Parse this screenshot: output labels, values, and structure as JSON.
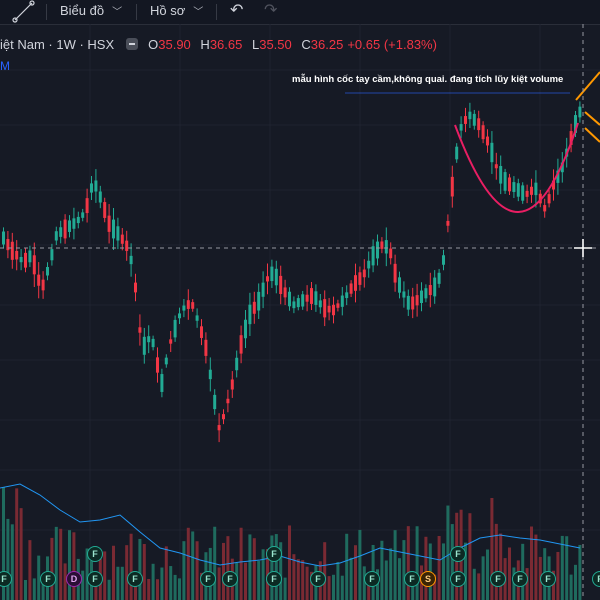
{
  "toolbar": {
    "chart_label": "Biểu đồ",
    "profile_label": "Hồ sơ"
  },
  "legend": {
    "symbol": "iệt Nam · 1W · HSX",
    "open_label": "O",
    "open": "35.90",
    "high_label": "H",
    "high": "36.65",
    "low_label": "L",
    "low": "35.50",
    "close_label": "C",
    "close": "36.25",
    "change": "+0.65 (+1.83%)",
    "sub_indicator": "M"
  },
  "annotation": {
    "text": "mẫu hình cốc tay cầm,không quai. đang tích lũy kiệt volume"
  },
  "events": [
    {
      "letter": "F",
      "type": "f"
    },
    {
      "letter": "F",
      "type": "f"
    },
    {
      "letter": "D",
      "type": "d"
    },
    {
      "letter": "F",
      "type": "f"
    },
    {
      "letter": "F",
      "type": "f"
    },
    {
      "letter": "F",
      "type": "f"
    },
    {
      "letter": "F",
      "type": "f"
    },
    {
      "letter": "F",
      "type": "f"
    },
    {
      "letter": "F",
      "type": "f"
    },
    {
      "letter": "F",
      "type": "f"
    },
    {
      "letter": "F",
      "type": "f"
    },
    {
      "letter": "F",
      "type": "f"
    },
    {
      "letter": "F",
      "type": "f"
    },
    {
      "letter": "S",
      "type": "s"
    },
    {
      "letter": "F",
      "type": "f"
    },
    {
      "letter": "F",
      "type": "f"
    },
    {
      "letter": "F",
      "type": "f"
    },
    {
      "letter": "F",
      "type": "f"
    },
    {
      "letter": "F",
      "type": "f"
    },
    {
      "letter": "F",
      "type": "f"
    }
  ],
  "colors": {
    "up": "#22ab94",
    "down": "#f23645",
    "volume_ma": "#2196f3",
    "cup": "#e91e63",
    "arrows": "#ff9800",
    "background": "#161a25"
  }
}
